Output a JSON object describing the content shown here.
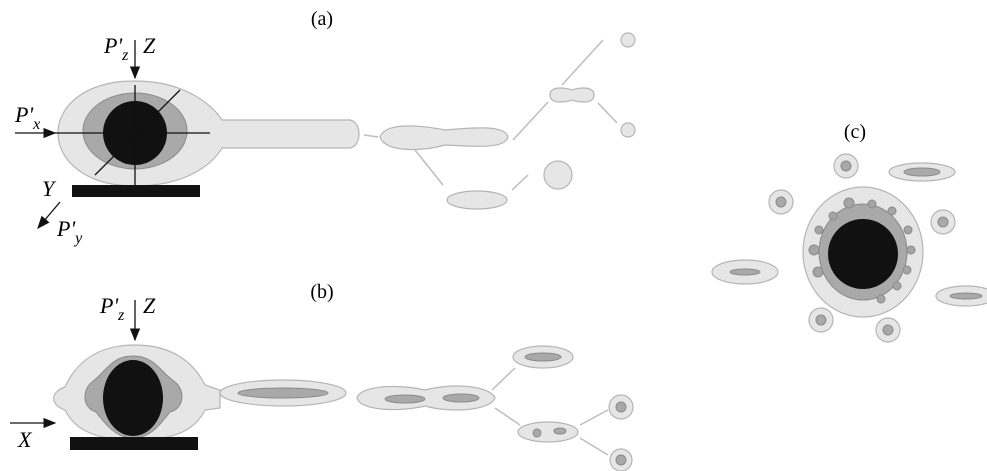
{
  "panels": [
    {
      "label": "(a)"
    },
    {
      "label": "(b)"
    },
    {
      "label": "(c)"
    }
  ],
  "labels": {
    "a_pz": {
      "base": "P'",
      "sub": "z"
    },
    "a_z": "Z",
    "a_px": {
      "base": "P'",
      "sub": "x"
    },
    "a_y": "Y",
    "a_py": {
      "base": "P'",
      "sub": "y"
    },
    "b_pz": {
      "base": "P'",
      "sub": "z"
    },
    "b_z": "Z",
    "b_x": "X"
  }
}
